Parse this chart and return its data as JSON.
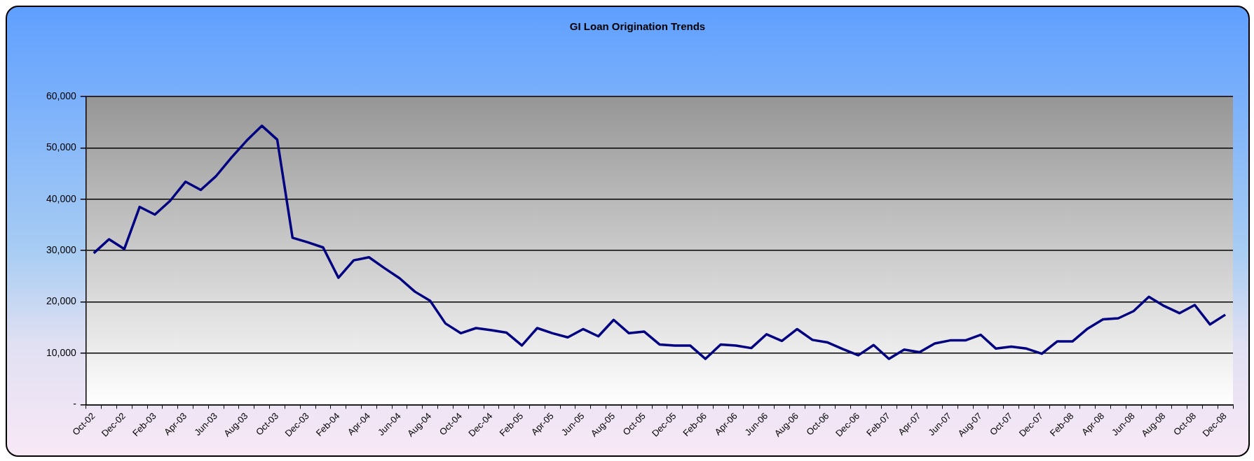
{
  "chart_data": {
    "type": "line",
    "title": "GI Loan Origination Trends",
    "categories": [
      "Oct-02",
      null,
      "Dec-02",
      null,
      "Feb-03",
      null,
      "Apr-03",
      null,
      "Jun-03",
      null,
      "Aug-03",
      null,
      "Oct-03",
      null,
      "Dec-03",
      null,
      "Feb-04",
      null,
      "Apr-04",
      null,
      "Jun-04",
      null,
      "Aug-04",
      null,
      "Oct-04",
      null,
      "Dec-04",
      null,
      "Feb-05",
      null,
      "Apr-05",
      null,
      "Jun-05",
      null,
      "Aug-05",
      null,
      "Oct-05",
      null,
      "Dec-05",
      null,
      "Feb-06",
      null,
      "Apr-06",
      null,
      "Jun-06",
      null,
      "Aug-06",
      null,
      "Oct-06",
      null,
      "Dec-06",
      null,
      "Feb-07",
      null,
      "Apr-07",
      null,
      "Jun-07",
      null,
      "Aug-07",
      null,
      "Oct-07",
      null,
      "Dec-07",
      null,
      "Feb-08",
      null,
      "Apr-08",
      null,
      "Jun-08",
      null,
      "Aug-08",
      null,
      "Oct-08",
      null,
      "Dec-08"
    ],
    "series": [
      {
        "color": "#000080",
        "values": [
          29500,
          32200,
          30300,
          38500,
          37000,
          39700,
          43400,
          41800,
          44500,
          48100,
          51400,
          54300,
          51600,
          32500,
          31600,
          30600,
          24700,
          28100,
          28700,
          26600,
          24600,
          22000,
          20200,
          15800,
          13900,
          14900,
          14500,
          14000,
          11500,
          14900,
          13900,
          13100,
          14700,
          13300,
          16500,
          13900,
          14200,
          11700,
          11500,
          11500,
          8900,
          11700,
          11500,
          11000,
          13700,
          12400,
          14700,
          12600,
          12100,
          10800,
          9600,
          11600,
          8900,
          10700,
          10200,
          11900,
          12500,
          12500,
          13600,
          10900,
          11300,
          10900,
          9900,
          12300,
          12300,
          14800,
          16600,
          16800,
          18200,
          21000,
          19200,
          17800,
          19400,
          15600,
          17500
        ]
      }
    ],
    "ylim": [
      0,
      60000
    ],
    "yticks": [
      {
        "value": 0,
        "label": "-"
      },
      {
        "value": 10000,
        "label": "10,000"
      },
      {
        "value": 20000,
        "label": "20,000"
      },
      {
        "value": 30000,
        "label": "30,000"
      },
      {
        "value": 40000,
        "label": "40,000"
      },
      {
        "value": 50000,
        "label": "50,000"
      },
      {
        "value": 60000,
        "label": "60,000"
      }
    ],
    "grid": "y",
    "legend": false,
    "marker": "none",
    "line_style": "solid"
  }
}
